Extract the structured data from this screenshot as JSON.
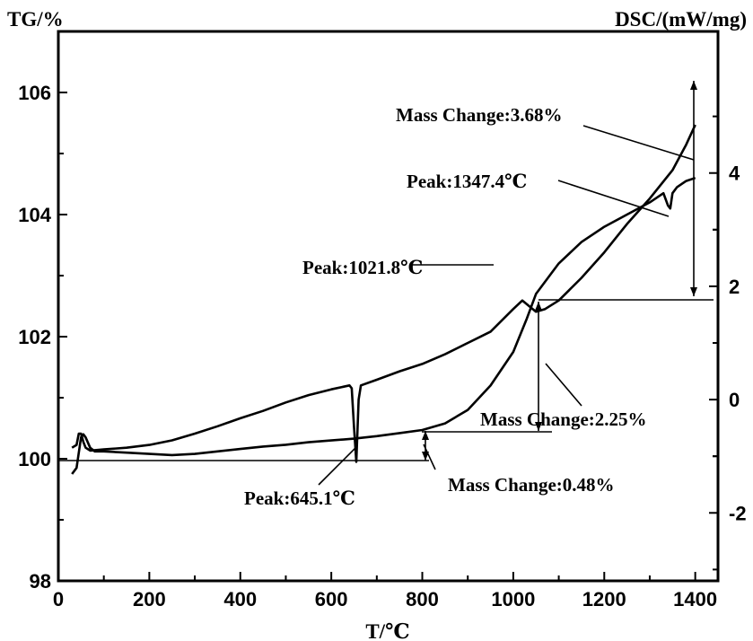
{
  "chart_data": {
    "type": "line",
    "xlabel": "T/℃",
    "ylabel_left": "TG/%",
    "ylabel_right": "DSC/(mW/mg)",
    "xlim": [
      0,
      1450
    ],
    "ylim_left": [
      98,
      107
    ],
    "ylim_right": [
      -3.2,
      6.5
    ],
    "x_ticks": [
      0,
      200,
      400,
      600,
      800,
      1000,
      1200,
      1400
    ],
    "y_ticks_left": [
      98,
      100,
      102,
      104,
      106
    ],
    "y_ticks_right": [
      -2,
      0,
      2,
      4
    ],
    "grid": false,
    "series": [
      {
        "axis": "left",
        "points": [
          [
            30,
            99.75
          ],
          [
            40,
            99.85
          ],
          [
            45,
            100.1
          ],
          [
            50,
            100.35
          ],
          [
            55,
            100.4
          ],
          [
            60,
            100.35
          ],
          [
            70,
            100.18
          ],
          [
            80,
            100.12
          ],
          [
            100,
            100.12
          ],
          [
            150,
            100.1
          ],
          [
            200,
            100.08
          ],
          [
            250,
            100.06
          ],
          [
            300,
            100.08
          ],
          [
            350,
            100.12
          ],
          [
            400,
            100.16
          ],
          [
            450,
            100.2
          ],
          [
            500,
            100.23
          ],
          [
            550,
            100.27
          ],
          [
            600,
            100.3
          ],
          [
            650,
            100.33
          ],
          [
            700,
            100.37
          ],
          [
            750,
            100.42
          ],
          [
            800,
            100.47
          ],
          [
            850,
            100.58
          ],
          [
            900,
            100.8
          ],
          [
            950,
            101.2
          ],
          [
            1000,
            101.75
          ],
          [
            1030,
            102.3
          ],
          [
            1050,
            102.7
          ],
          [
            1080,
            103.0
          ],
          [
            1100,
            103.2
          ],
          [
            1150,
            103.55
          ],
          [
            1200,
            103.8
          ],
          [
            1250,
            104.0
          ],
          [
            1300,
            104.2
          ],
          [
            1330,
            104.35
          ],
          [
            1340,
            104.15
          ],
          [
            1345,
            104.1
          ],
          [
            1350,
            104.35
          ],
          [
            1360,
            104.45
          ],
          [
            1380,
            104.55
          ],
          [
            1400,
            104.6
          ]
        ]
      },
      {
        "axis": "right",
        "points": [
          [
            30,
            -0.85
          ],
          [
            40,
            -0.8
          ],
          [
            45,
            -0.6
          ],
          [
            50,
            -0.6
          ],
          [
            55,
            -0.75
          ],
          [
            60,
            -0.85
          ],
          [
            70,
            -0.9
          ],
          [
            100,
            -0.88
          ],
          [
            150,
            -0.85
          ],
          [
            200,
            -0.8
          ],
          [
            250,
            -0.72
          ],
          [
            300,
            -0.6
          ],
          [
            350,
            -0.47
          ],
          [
            400,
            -0.33
          ],
          [
            450,
            -0.2
          ],
          [
            500,
            -0.05
          ],
          [
            550,
            0.08
          ],
          [
            600,
            0.18
          ],
          [
            640,
            0.25
          ],
          [
            645,
            0.2
          ],
          [
            650,
            -0.5
          ],
          [
            655,
            -1.1
          ],
          [
            660,
            0.0
          ],
          [
            665,
            0.25
          ],
          [
            700,
            0.35
          ],
          [
            750,
            0.5
          ],
          [
            800,
            0.63
          ],
          [
            850,
            0.8
          ],
          [
            900,
            1.0
          ],
          [
            950,
            1.2
          ],
          [
            1000,
            1.6
          ],
          [
            1020,
            1.75
          ],
          [
            1035,
            1.65
          ],
          [
            1050,
            1.55
          ],
          [
            1070,
            1.6
          ],
          [
            1100,
            1.75
          ],
          [
            1150,
            2.15
          ],
          [
            1200,
            2.6
          ],
          [
            1250,
            3.1
          ],
          [
            1300,
            3.55
          ],
          [
            1350,
            4.05
          ],
          [
            1380,
            4.5
          ],
          [
            1400,
            4.85
          ]
        ]
      }
    ],
    "annotations": [
      "Mass Change:3.68%",
      "Peak:1347.4℃",
      "Peak:1021.8℃",
      "Mass Change:2.25%",
      "Peak:645.1℃",
      "Mass Change:0.48%"
    ]
  }
}
